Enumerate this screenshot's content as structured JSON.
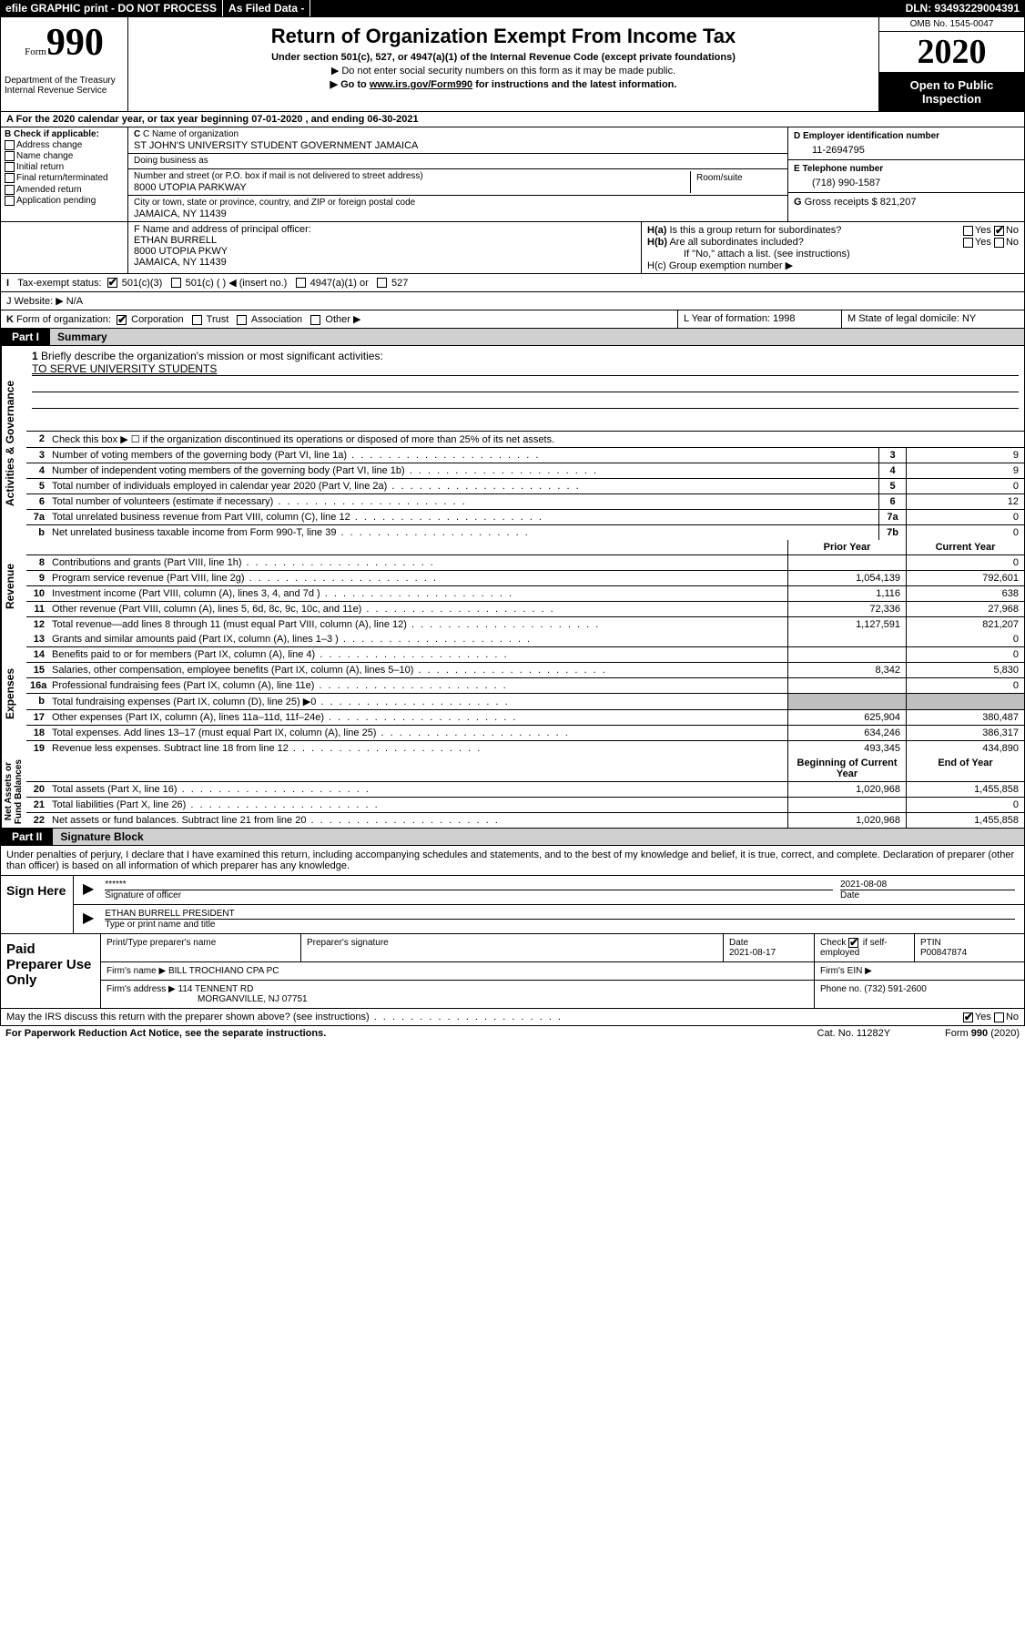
{
  "header": {
    "efile": "efile GRAPHIC print - DO NOT PROCESS",
    "asfiled": "As Filed Data -",
    "dln": "DLN: 93493229004391",
    "form_label": "Form",
    "form_num": "990",
    "dept": "Department of the Treasury\nInternal Revenue Service",
    "title": "Return of Organization Exempt From Income Tax",
    "sub": "Under section 501(c), 527, or 4947(a)(1) of the Internal Revenue Code (except private foundations)",
    "sub2": "▶ Do not enter social security numbers on this form as it may be made public.",
    "goto": "▶ Go to www.irs.gov/Form990 for instructions and the latest information.",
    "omb": "OMB No. 1545-0047",
    "year": "2020",
    "open": "Open to Public Inspection"
  },
  "A": "A  For the 2020 calendar year, or tax year beginning 07-01-2020   , and ending 06-30-2021",
  "B": {
    "title": "B Check if applicable:",
    "items": [
      "Address change",
      "Name change",
      "Initial return",
      "Final return/terminated",
      "Amended return",
      "Application pending"
    ]
  },
  "C": {
    "name_lbl": "C Name of organization",
    "name": "ST JOHN'S UNIVERSITY STUDENT GOVERNMENT JAMAICA",
    "dba_lbl": "Doing business as",
    "dba": "",
    "addr_lbl": "Number and street (or P.O. box if mail is not delivered to street address)",
    "room_lbl": "Room/suite",
    "addr": "8000 UTOPIA PARKWAY",
    "city_lbl": "City or town, state or province, country, and ZIP or foreign postal code",
    "city": "JAMAICA, NY  11439"
  },
  "D": {
    "ein_lbl": "D Employer identification number",
    "ein": "11-2694795",
    "tel_lbl": "E Telephone number",
    "tel": "(718) 990-1587",
    "gross_lbl": "G Gross receipts $",
    "gross": "821,207"
  },
  "F": {
    "lbl": "F  Name and address of principal officer:",
    "name": "ETHAN BURRELL",
    "addr1": "8000 UTOPIA PKWY",
    "addr2": "JAMAICA, NY  11439"
  },
  "H": {
    "a": "H(a)  Is this a group return for subordinates?",
    "b": "H(b)  Are all subordinates included?",
    "bnote": "If \"No,\" attach a list. (see instructions)",
    "c": "H(c)  Group exemption number ▶"
  },
  "I": {
    "lbl": "I   Tax-exempt status:",
    "opts": [
      "501(c)(3)",
      "501(c) (  ) ◀ (insert no.)",
      "4947(a)(1) or",
      "527"
    ]
  },
  "J": "J   Website: ▶   N/A",
  "K": "K Form of organization:",
  "Kopts": [
    "Corporation",
    "Trust",
    "Association",
    "Other ▶"
  ],
  "L": "L Year of formation: 1998",
  "M": "M State of legal domicile: NY",
  "part1": {
    "tag": "Part I",
    "title": "Summary"
  },
  "summary": {
    "q1": "1 Briefly describe the organization's mission or most significant activities:",
    "mission": "TO SERVE UNIVERSITY STUDENTS",
    "q2": "Check this box ▶ ☐ if the organization discontinued its operations or disposed of more than 25% of its net assets.",
    "rows_gov": [
      {
        "n": "3",
        "t": "Number of voting members of the governing body (Part VI, line 1a)",
        "box": "3",
        "v": "9"
      },
      {
        "n": "4",
        "t": "Number of independent voting members of the governing body (Part VI, line 1b)",
        "box": "4",
        "v": "9"
      },
      {
        "n": "5",
        "t": "Total number of individuals employed in calendar year 2020 (Part V, line 2a)",
        "box": "5",
        "v": "0"
      },
      {
        "n": "6",
        "t": "Total number of volunteers (estimate if necessary)",
        "box": "6",
        "v": "12"
      },
      {
        "n": "7a",
        "t": "Total unrelated business revenue from Part VIII, column (C), line 12",
        "box": "7a",
        "v": "0"
      },
      {
        "n": "b",
        "t": "Net unrelated business taxable income from Form 990-T, line 39",
        "box": "7b",
        "v": "0"
      }
    ],
    "pc_hdr": {
      "p": "Prior Year",
      "c": "Current Year"
    },
    "rev": [
      {
        "n": "8",
        "t": "Contributions and grants (Part VIII, line 1h)",
        "p": "",
        "c": "0"
      },
      {
        "n": "9",
        "t": "Program service revenue (Part VIII, line 2g)",
        "p": "1,054,139",
        "c": "792,601"
      },
      {
        "n": "10",
        "t": "Investment income (Part VIII, column (A), lines 3, 4, and 7d )",
        "p": "1,116",
        "c": "638"
      },
      {
        "n": "11",
        "t": "Other revenue (Part VIII, column (A), lines 5, 6d, 8c, 9c, 10c, and 11e)",
        "p": "72,336",
        "c": "27,968"
      },
      {
        "n": "12",
        "t": "Total revenue—add lines 8 through 11 (must equal Part VIII, column (A), line 12)",
        "p": "1,127,591",
        "c": "821,207"
      }
    ],
    "exp": [
      {
        "n": "13",
        "t": "Grants and similar amounts paid (Part IX, column (A), lines 1–3 )",
        "p": "",
        "c": "0"
      },
      {
        "n": "14",
        "t": "Benefits paid to or for members (Part IX, column (A), line 4)",
        "p": "",
        "c": "0"
      },
      {
        "n": "15",
        "t": "Salaries, other compensation, employee benefits (Part IX, column (A), lines 5–10)",
        "p": "8,342",
        "c": "5,830"
      },
      {
        "n": "16a",
        "t": "Professional fundraising fees (Part IX, column (A), line 11e)",
        "p": "",
        "c": "0"
      },
      {
        "n": "b",
        "t": "Total fundraising expenses (Part IX, column (D), line 25) ▶0",
        "p": "shade",
        "c": "shade"
      },
      {
        "n": "17",
        "t": "Other expenses (Part IX, column (A), lines 11a–11d, 11f–24e)",
        "p": "625,904",
        "c": "380,487"
      },
      {
        "n": "18",
        "t": "Total expenses. Add lines 13–17 (must equal Part IX, column (A), line 25)",
        "p": "634,246",
        "c": "386,317"
      },
      {
        "n": "19",
        "t": "Revenue less expenses. Subtract line 18 from line 12",
        "p": "493,345",
        "c": "434,890"
      }
    ],
    "na_hdr": {
      "p": "Beginning of Current Year",
      "c": "End of Year"
    },
    "na": [
      {
        "n": "20",
        "t": "Total assets (Part X, line 16)",
        "p": "1,020,968",
        "c": "1,455,858"
      },
      {
        "n": "21",
        "t": "Total liabilities (Part X, line 26)",
        "p": "",
        "c": "0"
      },
      {
        "n": "22",
        "t": "Net assets or fund balances. Subtract line 21 from line 20",
        "p": "1,020,968",
        "c": "1,455,858"
      }
    ]
  },
  "vtabs": {
    "gov": "Activities & Governance",
    "rev": "Revenue",
    "exp": "Expenses",
    "na": "Net Assets or\nFund Balances"
  },
  "part2": {
    "tag": "Part II",
    "title": "Signature Block"
  },
  "sig": {
    "decl": "Under penalties of perjury, I declare that I have examined this return, including accompanying schedules and statements, and to the best of my knowledge and belief, it is true, correct, and complete. Declaration of preparer (other than officer) is based on all information of which preparer has any knowledge.",
    "sign_here": "Sign Here",
    "stars": "******",
    "sig_of": "Signature of officer",
    "date": "2021-08-08",
    "date_lbl": "Date",
    "name": "ETHAN BURRELL PRESIDENT",
    "name_lbl": "Type or print name and title"
  },
  "paid": {
    "lbl": "Paid Preparer Use Only",
    "h": [
      "Print/Type preparer's name",
      "Preparer's signature",
      "Date",
      "Check ☑ if self-employed",
      "PTIN"
    ],
    "r1_date": "2021-08-17",
    "r1_ptin": "P00847874",
    "firm_lbl": "Firm's name  ▶",
    "firm": "BILL TROCHIANO CPA PC",
    "ein_lbl": "Firm's EIN ▶",
    "addr_lbl": "Firm's address ▶",
    "addr1": "114 TENNENT RD",
    "addr2": "MORGANVILLE, NJ  07751",
    "phone_lbl": "Phone no.",
    "phone": "(732) 591-2600",
    "discuss": "May the IRS discuss this return with the preparer shown above? (see instructions)"
  },
  "footer": {
    "l": "For Paperwork Reduction Act Notice, see the separate instructions.",
    "m": "Cat. No. 11282Y",
    "r": "Form 990 (2020)"
  }
}
